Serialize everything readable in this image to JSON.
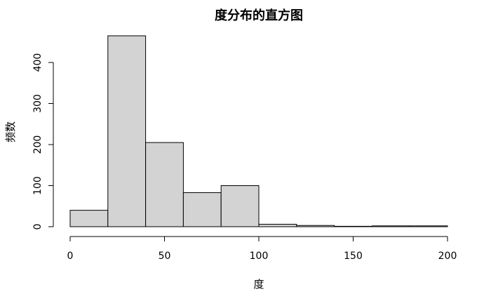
{
  "chart_data": {
    "type": "bar",
    "subtype": "histogram",
    "title": "度分布的直方图",
    "xlabel": "度",
    "ylabel": "频数",
    "bin_edges": [
      0,
      20,
      40,
      60,
      80,
      100,
      120,
      140,
      160,
      180,
      200
    ],
    "values": [
      40,
      465,
      205,
      83,
      100,
      6,
      3,
      1,
      2,
      2
    ],
    "xlim": [
      0,
      200
    ],
    "ylim": [
      0,
      465
    ],
    "x_ticks": [
      0,
      50,
      100,
      150,
      200
    ],
    "y_ticks": [
      0,
      100,
      200,
      300,
      400
    ],
    "grid": false,
    "bar_fill": "#d3d3d3",
    "bar_stroke": "#000000"
  }
}
